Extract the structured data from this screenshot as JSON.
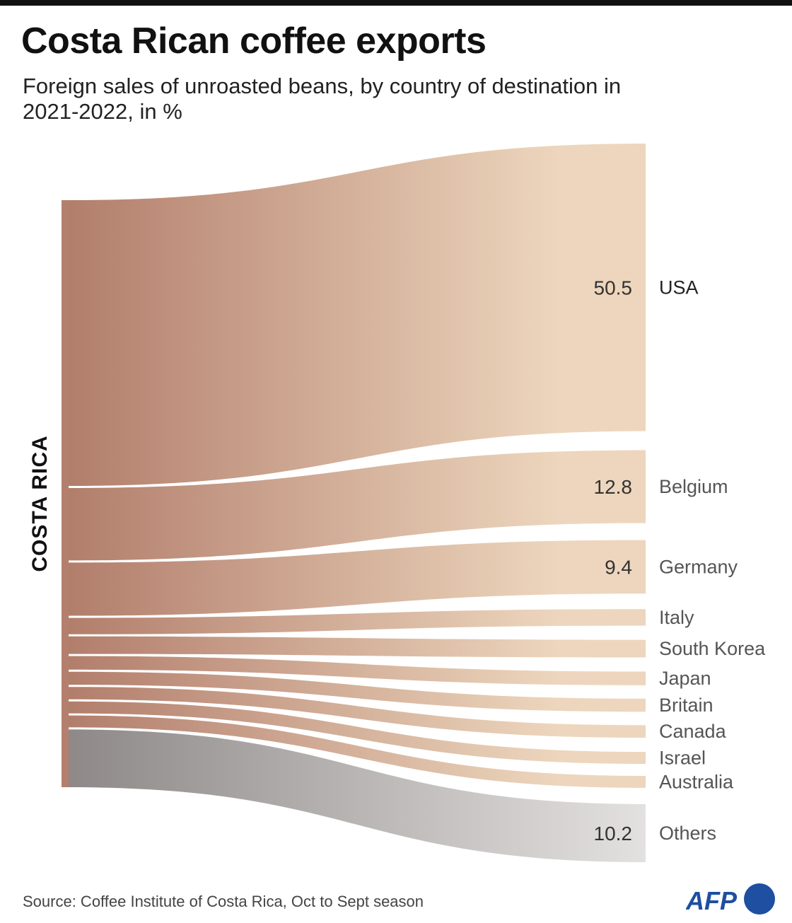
{
  "header": {
    "title": "Costa Rican coffee exports",
    "subtitle": "Foreign sales of unroasted beans, by country of destination in 2021-2022, in %"
  },
  "footer": {
    "source": "Source: Coffee Institute of Costa Rica, Oct to Sept season",
    "logo_text": "AFP"
  },
  "colors": {
    "flow_left": "#b27e6c",
    "flow_right": "#edd6bd",
    "others_left": "#8e8988",
    "others_right": "#e3e1e0",
    "node": "#b47f6d",
    "logo": "#1e4fa0"
  },
  "chart_data": {
    "type": "sankey",
    "title": "Costa Rican coffee exports",
    "subtitle": "Foreign sales of unroasted beans, by country of destination in 2021-2022, in %",
    "source_node": "COSTA RICA",
    "unit": "%",
    "flows": [
      {
        "target": "USA",
        "value": 50.5,
        "labeled": true
      },
      {
        "target": "Belgium",
        "value": 12.8,
        "labeled": true
      },
      {
        "target": "Germany",
        "value": 9.4,
        "labeled": true
      },
      {
        "target": "Italy",
        "value": 2.9,
        "labeled": false
      },
      {
        "target": "South Korea",
        "value": 3.1,
        "labeled": false
      },
      {
        "target": "Japan",
        "value": 2.4,
        "labeled": false
      },
      {
        "target": "Britain",
        "value": 2.3,
        "labeled": false
      },
      {
        "target": "Canada",
        "value": 2.2,
        "labeled": false
      },
      {
        "target": "Israel",
        "value": 2.1,
        "labeled": false
      },
      {
        "target": "Australia",
        "value": 2.1,
        "labeled": false
      },
      {
        "target": "Others",
        "value": 10.2,
        "labeled": true
      }
    ]
  }
}
